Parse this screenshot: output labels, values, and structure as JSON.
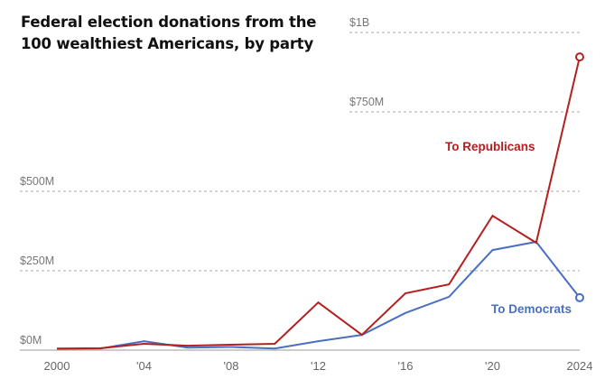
{
  "chart_data": {
    "type": "line",
    "title": "Federal election donations from the 100 wealthiest Americans, by party",
    "xlabel": "",
    "ylabel": "",
    "x": [
      2000,
      2002,
      2004,
      2006,
      2008,
      2010,
      2012,
      2014,
      2016,
      2018,
      2020,
      2022,
      2024
    ],
    "xlim": [
      2000,
      2024
    ],
    "ylim": [
      0,
      1000
    ],
    "y_unit": "millions of dollars",
    "x_ticks": [
      {
        "value": 2000,
        "label": "2000"
      },
      {
        "value": 2004,
        "label": "'04"
      },
      {
        "value": 2008,
        "label": "'08"
      },
      {
        "value": 2012,
        "label": "'12"
      },
      {
        "value": 2016,
        "label": "'16"
      },
      {
        "value": 2020,
        "label": "'20"
      },
      {
        "value": 2024,
        "label": "2024"
      }
    ],
    "y_ticks": [
      {
        "value": 0,
        "label": "$0M"
      },
      {
        "value": 250,
        "label": "$250M"
      },
      {
        "value": 500,
        "label": "$500M"
      },
      {
        "value": 750,
        "label": "$750M"
      },
      {
        "value": 1000,
        "label": "$1B"
      }
    ],
    "grid": true,
    "series": [
      {
        "name": "To Republicans",
        "color": "#b3201f",
        "values": [
          5,
          6,
          20,
          14,
          17,
          20,
          150,
          48,
          179,
          207,
          423,
          338,
          923
        ]
      },
      {
        "name": "To Democrats",
        "color": "#4a6fc0",
        "values": [
          4,
          5,
          28,
          8,
          10,
          5,
          28,
          48,
          117,
          168,
          315,
          341,
          165
        ]
      }
    ],
    "annotations": [
      {
        "text": "To Republicans",
        "series": 0,
        "placement": "left of 2024 rise"
      },
      {
        "text": "To Democrats",
        "series": 1,
        "placement": "below 2024 endpoint"
      }
    ]
  }
}
